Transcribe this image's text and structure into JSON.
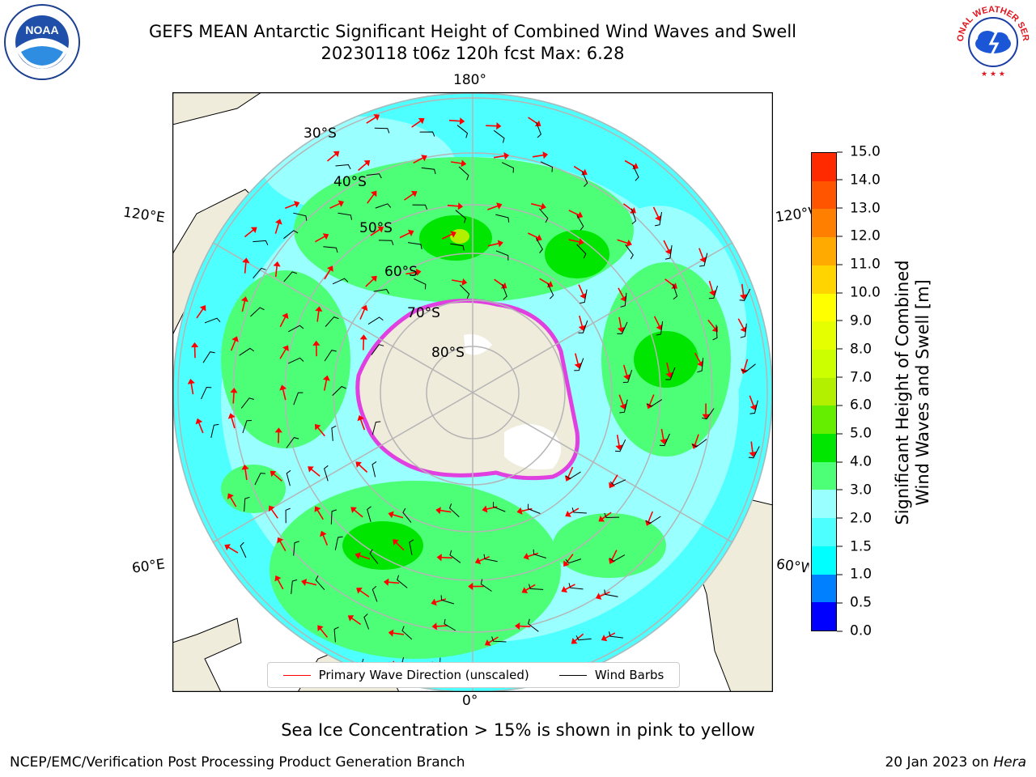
{
  "header": {
    "title_line1": "GEFS MEAN Antarctic Significant Height of Combined Wind Waves and Swell",
    "title_line2": "20230118 t06z 120h fcst   Max: 6.28"
  },
  "logos": {
    "left": {
      "text": "NOAA",
      "icon": "noaa-logo"
    },
    "right": {
      "text": "NATIONAL WEATHER SERVICE",
      "icon": "nws-logo"
    }
  },
  "map": {
    "projection": "south-polar-stereographic",
    "lon_labels": {
      "top": "180°",
      "bottom": "0°",
      "upper_left": "120°E",
      "upper_right": "120°W",
      "lower_left": "60°E",
      "lower_right": "60°W"
    },
    "lat_labels": [
      "30°S",
      "40°S",
      "50°S",
      "60°S",
      "70°S",
      "80°S"
    ],
    "colors": {
      "land": "#efecdc",
      "ocean_low": "#4dffff",
      "ocean_mid": "#99ffff",
      "wave_3to4": "#4dff77",
      "wave_4to5": "#00e600",
      "grid": "#b5b5b5",
      "arrow": "#ff0000",
      "barb": "#000000"
    }
  },
  "legend": {
    "items": [
      {
        "label": "Primary Wave Direction (unscaled)",
        "color": "#ff0000"
      },
      {
        "label": "Wind Barbs",
        "color": "#000000"
      }
    ]
  },
  "colorbar": {
    "label_line1": "Significant Height of Combined",
    "label_line2": "Wind Waves and Swell [m]",
    "ticks": [
      "0.0",
      "0.5",
      "1.0",
      "1.5",
      "2.0",
      "3.0",
      "4.0",
      "5.0",
      "6.0",
      "7.0",
      "8.0",
      "9.0",
      "10.0",
      "11.0",
      "12.0",
      "13.0",
      "14.0",
      "15.0"
    ],
    "colors": [
      "#0000ff",
      "#0080ff",
      "#00ffff",
      "#4dffff",
      "#99ffff",
      "#4dff77",
      "#00e600",
      "#66ee00",
      "#b3f000",
      "#ccff00",
      "#e6ff00",
      "#ffff00",
      "#ffd400",
      "#ffaa00",
      "#ff8000",
      "#ff5500",
      "#ff2a00"
    ]
  },
  "notes": {
    "sea_ice": "Sea Ice Concentration > 15% is shown in pink to yellow"
  },
  "footer": {
    "left": "NCEP/EMC/Verification Post Processing Product Generation Branch",
    "right_date": "20 Jan 2023 on",
    "right_host": "Hera"
  }
}
